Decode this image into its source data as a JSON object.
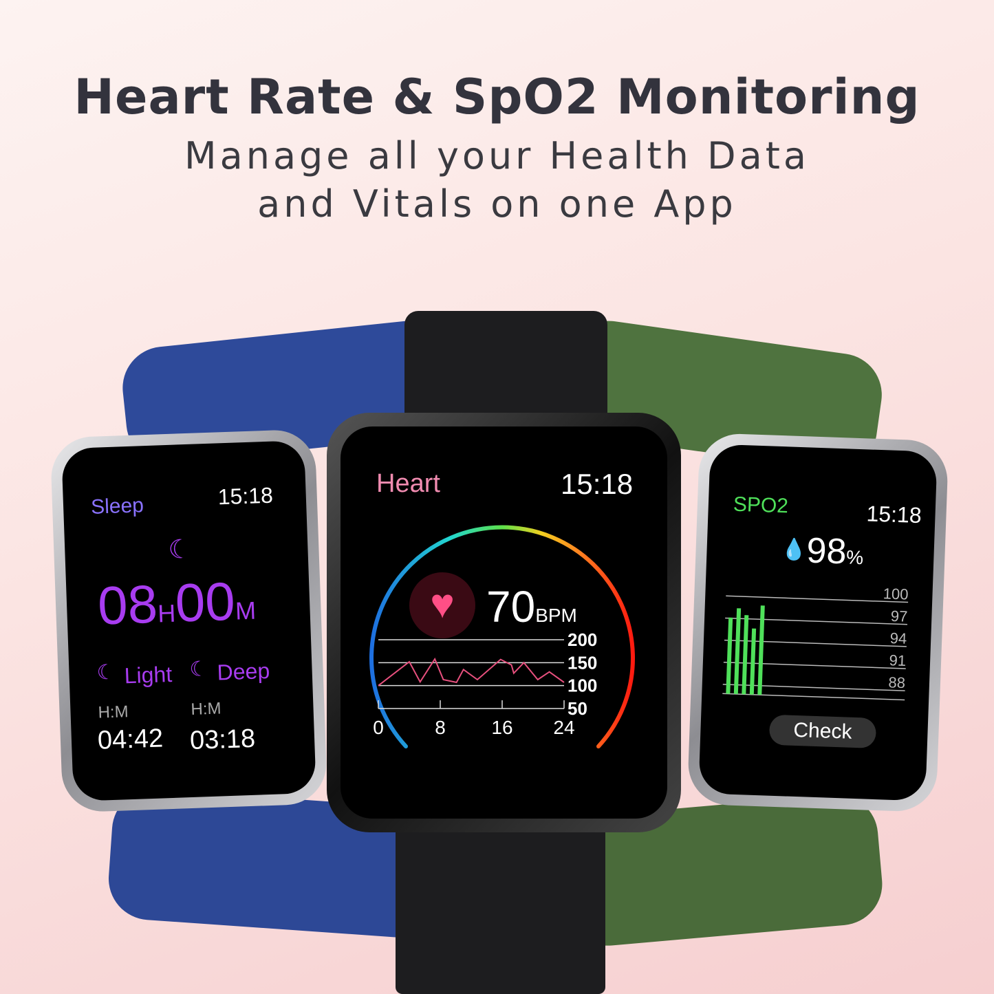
{
  "headline": "Heart Rate & SpO2 Monitoring",
  "subline1": "Manage all your Health Data",
  "subline2": "and Vitals on one App",
  "sleep_watch": {
    "title": "Sleep",
    "time": "15:18",
    "hours": "08",
    "h_unit": "H",
    "minutes": "00",
    "m_unit": "M",
    "light_label": "Light",
    "deep_label": "Deep",
    "light_unit": "H:M",
    "deep_unit": "H:M",
    "light_value": "04:42",
    "deep_value": "03:18",
    "accent": "#a83cf0"
  },
  "heart_watch": {
    "title": "Heart",
    "time": "15:18",
    "bpm": "70",
    "bpm_unit": "BPM",
    "accent": "#f08bb0",
    "chart_data": {
      "type": "line",
      "x_ticks": [
        "0",
        "8",
        "16",
        "24"
      ],
      "y_ticks": [
        "200",
        "150",
        "100",
        "50"
      ],
      "xlim": [
        0,
        24
      ],
      "ylim": [
        50,
        200
      ],
      "x": [
        0,
        4,
        5.4,
        7.3,
        8.4,
        10.1,
        11,
        12.8,
        15.8,
        17.2,
        17.5,
        18.8,
        20.6,
        22.1,
        24
      ],
      "y": [
        100,
        152,
        108,
        158,
        113,
        107,
        135,
        113,
        157,
        145,
        127,
        150,
        113,
        130,
        107
      ],
      "color": "#e8507e"
    }
  },
  "spo2_watch": {
    "title": "SPO2",
    "time": "15:18",
    "value": "98",
    "unit": "%",
    "button": "Check",
    "accent": "#4fe05a",
    "chart_data": {
      "type": "bar",
      "y_ticks": [
        "100",
        "97",
        "94",
        "91",
        "88"
      ],
      "ylim": [
        85,
        100
      ],
      "values": [
        96.4,
        98.0,
        96.9,
        94.7,
        98.6
      ]
    }
  },
  "band_colors": {
    "left": "#2e4a9a",
    "center": "#1d1d1f",
    "right": "#4b6e3b"
  }
}
